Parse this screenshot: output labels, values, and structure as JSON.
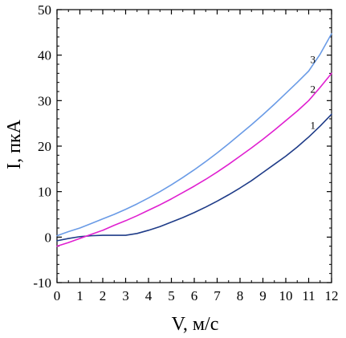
{
  "chart_data": {
    "type": "line",
    "xlabel": "V, м/с",
    "ylabel": "I, пкА",
    "xlim": [
      0,
      12
    ],
    "ylim": [
      -10,
      50
    ],
    "x_ticks": [
      "0",
      "1",
      "2",
      "3",
      "4",
      "5",
      "6",
      "7",
      "8",
      "9",
      "10",
      "11",
      "12"
    ],
    "y_ticks": [
      "-10",
      "0",
      "10",
      "20",
      "30",
      "40",
      "50"
    ],
    "grid": false,
    "legend": "none",
    "series": [
      {
        "name": "1",
        "color": "#1f3c88",
        "x": [
          0,
          0.5,
          1,
          1.5,
          2,
          2.5,
          3,
          3.5,
          4,
          4.5,
          5,
          5.5,
          6,
          6.5,
          7,
          7.5,
          8,
          8.5,
          9,
          9.5,
          10,
          10.5,
          11,
          11.5,
          12
        ],
        "y": [
          -0.8,
          -0.3,
          0.1,
          0.3,
          0.4,
          0.4,
          0.4,
          0.8,
          1.5,
          2.3,
          3.3,
          4.3,
          5.4,
          6.6,
          7.9,
          9.3,
          10.8,
          12.4,
          14.2,
          16.0,
          17.8,
          19.8,
          22.0,
          24.4,
          27.0
        ]
      },
      {
        "name": "2",
        "color": "#e020d0",
        "x": [
          0,
          0.5,
          1,
          1.5,
          2,
          2.5,
          3,
          3.5,
          4,
          4.5,
          5,
          5.5,
          6,
          6.5,
          7,
          7.5,
          8,
          8.5,
          9,
          9.5,
          10,
          10.5,
          11,
          11.5,
          12
        ],
        "y": [
          -2.0,
          -1.2,
          -0.3,
          0.6,
          1.5,
          2.6,
          3.6,
          4.7,
          5.9,
          7.1,
          8.4,
          9.8,
          11.2,
          12.7,
          14.3,
          16.0,
          17.8,
          19.6,
          21.5,
          23.5,
          25.6,
          27.7,
          30.0,
          32.9,
          36.0
        ]
      },
      {
        "name": "3",
        "color": "#6a9be6",
        "x": [
          0,
          0.5,
          1,
          1.5,
          2,
          2.5,
          3,
          3.5,
          4,
          4.5,
          5,
          5.5,
          6,
          6.5,
          7,
          7.5,
          8,
          8.5,
          9,
          9.5,
          10,
          10.5,
          11,
          11.5,
          12
        ],
        "y": [
          0.3,
          1.2,
          2.0,
          3.0,
          4.0,
          5.0,
          6.1,
          7.3,
          8.6,
          10.0,
          11.5,
          13.1,
          14.8,
          16.6,
          18.5,
          20.5,
          22.6,
          24.7,
          26.9,
          29.2,
          31.6,
          34.0,
          36.5,
          40.2,
          44.7
        ]
      }
    ]
  }
}
